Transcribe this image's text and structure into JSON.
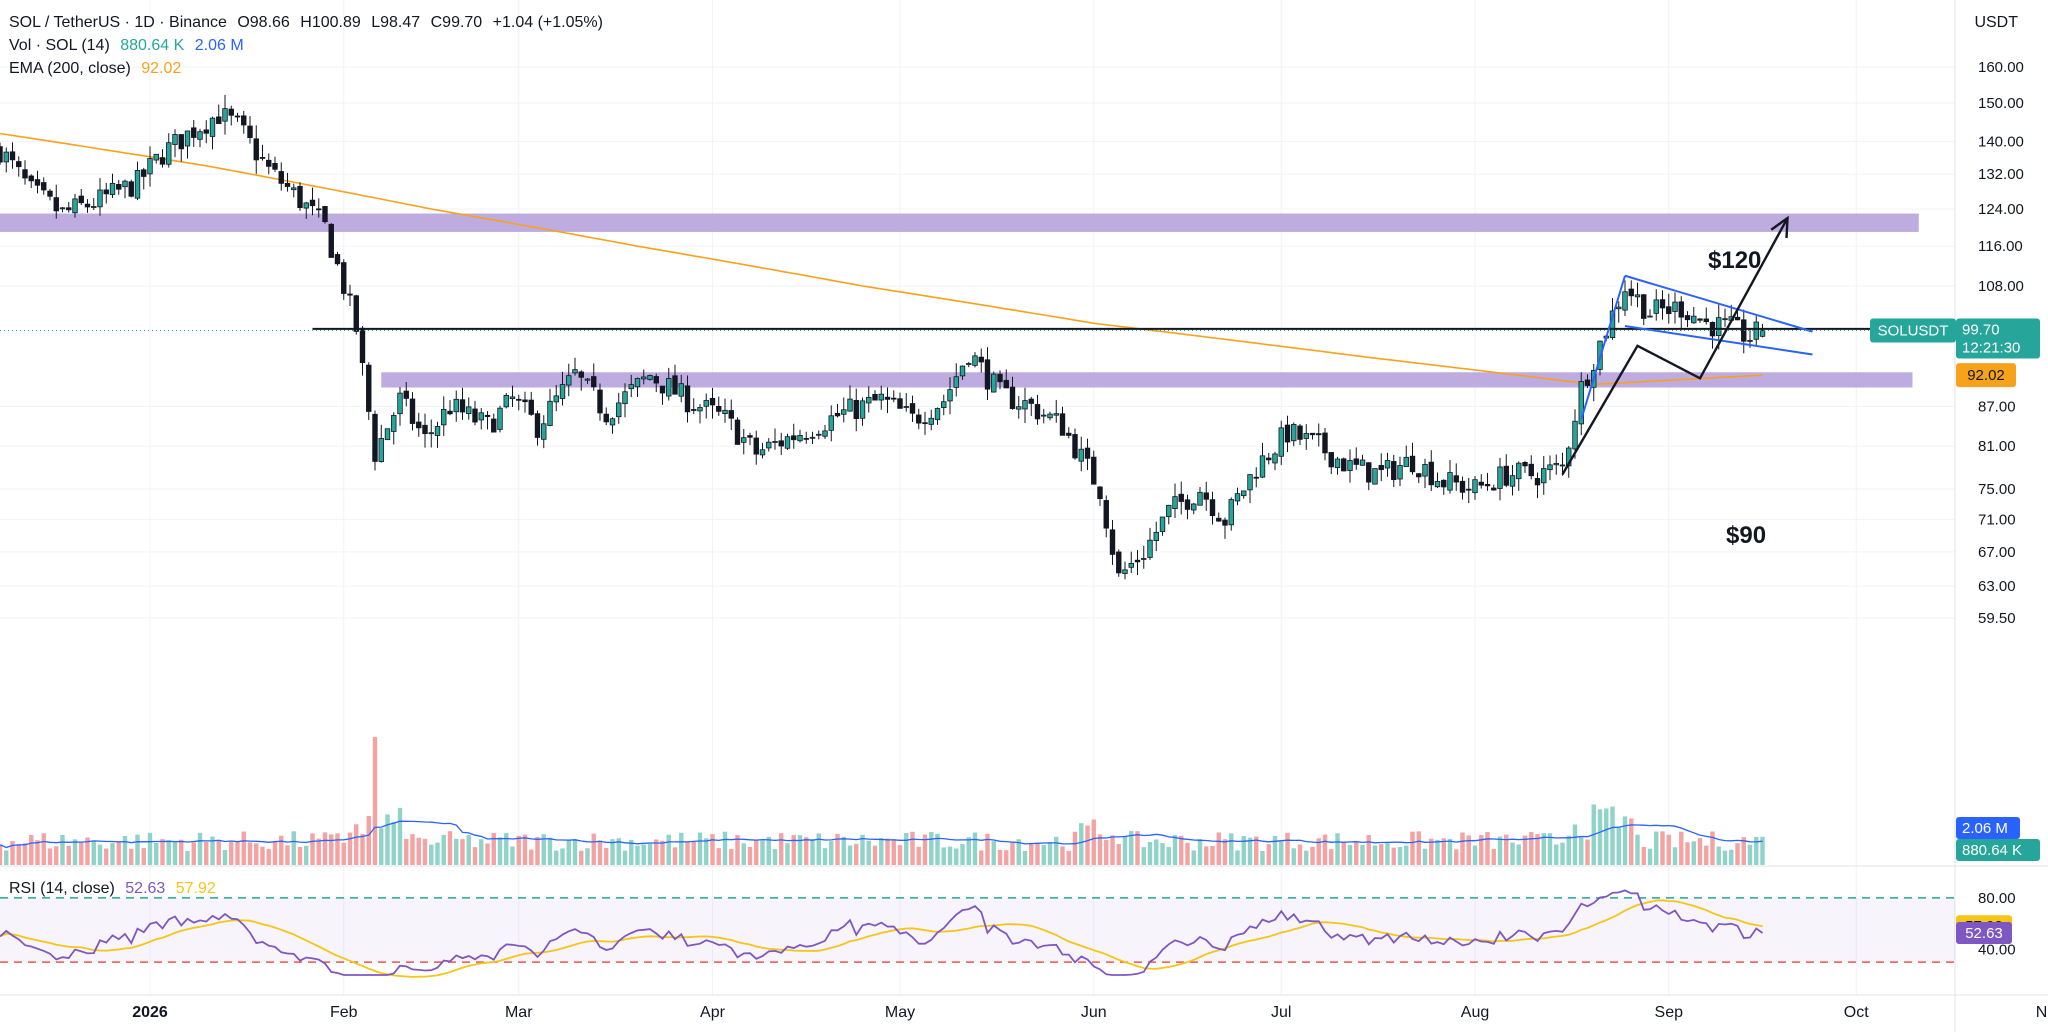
{
  "header": {
    "symbol": "SOL / TetherUS · 1D · Binance",
    "open": "O98.66",
    "high": "H100.89",
    "low": "L98.47",
    "close": "C99.70",
    "change": "+1.04 (+1.05%)",
    "volume_label": "Vol · SOL (14)",
    "volume_value": "880.64 K",
    "volume_ma_value": "2.06 M",
    "ema_label": "EMA (200, close)",
    "ema_value": "92.02",
    "rsi_label": "RSI (14, close)",
    "rsi_value": "52.63",
    "rsi_ma_value": "57.92"
  },
  "currency": "USDT",
  "price_tag": {
    "symbol": "SOLUSDT",
    "price": "99.70",
    "countdown": "12:21:30"
  },
  "ema_tag": "92.02",
  "volume_tags": {
    "ma": "2.06 M",
    "volume": "880.64 K"
  },
  "rsi_tags": {
    "ma": "57.92",
    "rsi": "52.63"
  },
  "annotations": {
    "target_high": "$120",
    "target_low": "$90"
  },
  "colors": {
    "up": "#26a69a",
    "down": "#ef5350",
    "vol_up": "#8fd3c9",
    "vol_down": "#f4a3a3",
    "ema": "#f7a21b",
    "zone": "#b39ddb",
    "flag": "#2962ff",
    "rsi": "#7e57c2",
    "rsi_ma": "#f5c518",
    "vol_ma": "#2962ff"
  },
  "chart_data": {
    "type": "candlestick",
    "price_scale": "log",
    "y_ticks": [
      160,
      150,
      140,
      132,
      124,
      116,
      108,
      87,
      81,
      75,
      71,
      67,
      63,
      59.5
    ],
    "x_ticks": [
      "2026",
      "Feb",
      "Mar",
      "Apr",
      "May",
      "Jun",
      "Jul",
      "Aug",
      "Sep",
      "Oct",
      "Nov"
    ],
    "date_start": "2025-12-08",
    "date_last": "2026-09-16",
    "anchors": [
      [
        "2025-12-08",
        138
      ],
      [
        "2025-12-13",
        128
      ],
      [
        "2025-12-18",
        123
      ],
      [
        "2025-12-24",
        126
      ],
      [
        "2025-12-30",
        130
      ],
      [
        "2026-01-03",
        137
      ],
      [
        "2026-01-08",
        143
      ],
      [
        "2026-01-12",
        147
      ],
      [
        "2026-01-15",
        144
      ],
      [
        "2026-01-20",
        133
      ],
      [
        "2026-01-25",
        126
      ],
      [
        "2026-01-29",
        120
      ],
      [
        "2026-02-01",
        108
      ],
      [
        "2026-02-03",
        100
      ],
      [
        "2026-02-06",
        80
      ],
      [
        "2026-02-10",
        88
      ],
      [
        "2026-02-14",
        82
      ],
      [
        "2026-02-18",
        87
      ],
      [
        "2026-02-24",
        84
      ],
      [
        "2026-02-28",
        88
      ],
      [
        "2026-03-04",
        84
      ],
      [
        "2026-03-10",
        92
      ],
      [
        "2026-03-15",
        86
      ],
      [
        "2026-03-22",
        92
      ],
      [
        "2026-03-28",
        88
      ],
      [
        "2026-04-03",
        85
      ],
      [
        "2026-04-08",
        80
      ],
      [
        "2026-04-15",
        83
      ],
      [
        "2026-04-22",
        86
      ],
      [
        "2026-04-28",
        88
      ],
      [
        "2026-05-03",
        85
      ],
      [
        "2026-05-08",
        88
      ],
      [
        "2026-05-12",
        96
      ],
      [
        "2026-05-17",
        89
      ],
      [
        "2026-05-22",
        87
      ],
      [
        "2026-05-27",
        84
      ],
      [
        "2026-06-02",
        75
      ],
      [
        "2026-06-05",
        64
      ],
      [
        "2026-06-09",
        67
      ],
      [
        "2026-06-13",
        72
      ],
      [
        "2026-06-18",
        75
      ],
      [
        "2026-06-22",
        71
      ],
      [
        "2026-06-27",
        78
      ],
      [
        "2026-07-02",
        83
      ],
      [
        "2026-07-07",
        81
      ],
      [
        "2026-07-12",
        78
      ],
      [
        "2026-07-17",
        77
      ],
      [
        "2026-07-22",
        79
      ],
      [
        "2026-07-27",
        76
      ],
      [
        "2026-08-01",
        75
      ],
      [
        "2026-08-06",
        77
      ],
      [
        "2026-08-11",
        77
      ],
      [
        "2026-08-15",
        78
      ],
      [
        "2026-08-18",
        90
      ],
      [
        "2026-08-22",
        100
      ],
      [
        "2026-08-25",
        108
      ],
      [
        "2026-08-29",
        103
      ],
      [
        "2026-09-03",
        104
      ],
      [
        "2026-09-07",
        101
      ],
      [
        "2026-09-11",
        100
      ],
      [
        "2026-09-14",
        98.5
      ],
      [
        "2026-09-16",
        99.7
      ]
    ],
    "series": [
      {
        "name": "EMA (200, close)",
        "points": [
          [
            "2025-12-08",
            142
          ],
          [
            "2026-01-10",
            134
          ],
          [
            "2026-02-15",
            124
          ],
          [
            "2026-03-20",
            116
          ],
          [
            "2026-04-25",
            108
          ],
          [
            "2026-06-01",
            101
          ],
          [
            "2026-07-15",
            95
          ],
          [
            "2026-08-20",
            90.5
          ],
          [
            "2026-09-16",
            92.02
          ]
        ]
      }
    ],
    "levels": [
      {
        "label": "resistance zone",
        "low": 119,
        "high": 123,
        "from": "2025-12-08",
        "to": "2026-10-11"
      },
      {
        "label": "support zone",
        "low": 90,
        "high": 92.5,
        "from": "2026-02-07",
        "to": "2026-10-10"
      },
      {
        "label": "horizontal line",
        "value": 100,
        "from": "2026-01-27",
        "to": "2026-10-10"
      }
    ],
    "flag": {
      "pole": [
        [
          "2026-08-18",
          85
        ],
        [
          "2026-08-25",
          110
        ]
      ],
      "upper": [
        [
          "2026-08-25",
          110
        ],
        [
          "2026-09-24",
          99.5
        ]
      ],
      "lower": [
        [
          "2026-08-25",
          100.5
        ],
        [
          "2026-09-24",
          95.5
        ]
      ]
    },
    "projection": [
      [
        "2026-08-15",
        77
      ],
      [
        "2026-08-27",
        97
      ],
      [
        "2026-09-06",
        91.5
      ],
      [
        "2026-09-20",
        122
      ]
    ],
    "rsi": {
      "ylim": [
        20,
        90
      ],
      "upper": 80,
      "lower": 30,
      "ticks": [
        80,
        40
      ],
      "last": 52.63,
      "ma_last": 57.92
    }
  }
}
